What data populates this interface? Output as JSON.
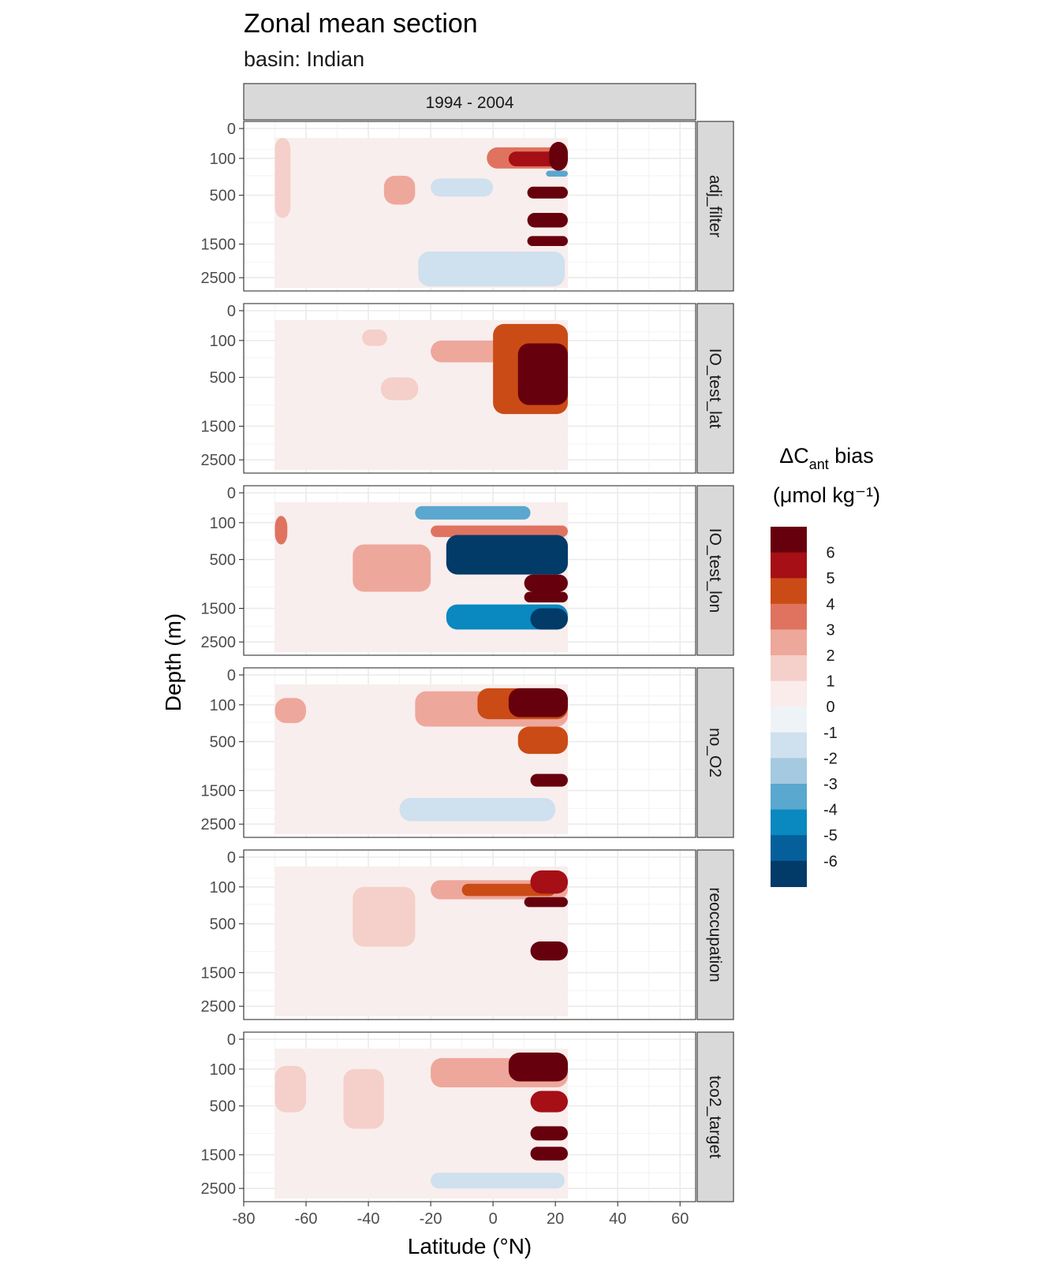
{
  "title": "Zonal mean section",
  "subtitle": "basin: Indian",
  "strip_top": "1994 - 2004",
  "xlabel": "Latitude (°N)",
  "ylabel": "Depth (m)",
  "legend": {
    "title_line1_main": "ΔC",
    "title_line1_sub": "ant",
    "title_line1_rest": " bias",
    "title_line2": "(μmol kg⁻¹)",
    "labels": [
      "6",
      "5",
      "4",
      "3",
      "2",
      "1",
      "0",
      "-1",
      "-2",
      "-3",
      "-4",
      "-5",
      "-6"
    ]
  },
  "colors": {
    "bins": [
      "#67000d",
      "#a50f15",
      "#cb4b16",
      "#e0735f",
      "#eea79b",
      "#f5cfc9",
      "#faeceb",
      "#eef3f8",
      "#cfe0ee",
      "#a5c9e0",
      "#5aa7cf",
      "#0a88c0",
      "#045f9b",
      "#023a68"
    ],
    "panel_bg": "#ffffff",
    "grid": "#ebebeb",
    "strip_bg": "#d9d9d9"
  },
  "chart_data": {
    "type": "heatmap",
    "title": "Zonal mean section",
    "subtitle": "basin: Indian",
    "xlabel": "Latitude (°N)",
    "ylabel": "Depth (m)",
    "xlim": [
      -80,
      65
    ],
    "x_ticks": [
      -80,
      -60,
      -40,
      -20,
      0,
      20,
      40,
      60
    ],
    "y_ticks": [
      0,
      100,
      500,
      1500,
      2500
    ],
    "y_reversed": true,
    "y_scale": "sqrt",
    "data_extent_lat": [
      -70,
      24
    ],
    "legend_breaks": [
      -6,
      -5,
      -4,
      -3,
      -2,
      -1,
      0,
      1,
      2,
      3,
      4,
      5,
      6
    ],
    "panels": [
      {
        "name": "adj_filter",
        "features": [
          {
            "lat": [
              -2,
              24
            ],
            "depth": [
              40,
              180
            ],
            "value": 3.5
          },
          {
            "lat": [
              5,
              24
            ],
            "depth": [
              60,
              160
            ],
            "value": 5.5
          },
          {
            "lat": [
              18,
              24
            ],
            "depth": [
              20,
              200
            ],
            "value": 7
          },
          {
            "lat": [
              17,
              24
            ],
            "depth": [
              200,
              260
            ],
            "value": -3.5
          },
          {
            "lat": [
              11,
              24
            ],
            "depth": [
              380,
              550
            ],
            "value": 6
          },
          {
            "lat": [
              11,
              24
            ],
            "depth": [
              800,
              1100
            ],
            "value": 6.5
          },
          {
            "lat": [
              11,
              24
            ],
            "depth": [
              1300,
              1550
            ],
            "value": 6
          },
          {
            "lat": [
              -20,
              0
            ],
            "depth": [
              280,
              520
            ],
            "value": -1.5
          },
          {
            "lat": [
              -24,
              23
            ],
            "depth": [
              1700,
              2800
            ],
            "value": -1.5
          },
          {
            "lat": [
              -70,
              -65
            ],
            "depth": [
              10,
              900
            ],
            "value": 1.5
          },
          {
            "lat": [
              -35,
              -25
            ],
            "depth": [
              250,
              650
            ],
            "value": 2.5
          }
        ]
      },
      {
        "name": "IO_test_lat",
        "features": [
          {
            "lat": [
              -20,
              24
            ],
            "depth": [
              100,
              300
            ],
            "value": 3
          },
          {
            "lat": [
              0,
              24
            ],
            "depth": [
              20,
              1200
            ],
            "value": 4.5
          },
          {
            "lat": [
              8,
              24
            ],
            "depth": [
              120,
              1000
            ],
            "value": 7
          },
          {
            "lat": [
              -36,
              -24
            ],
            "depth": [
              500,
              900
            ],
            "value": 2
          },
          {
            "lat": [
              -42,
              -34
            ],
            "depth": [
              40,
              140
            ],
            "value": 2
          }
        ]
      },
      {
        "name": "IO_test_lon",
        "features": [
          {
            "lat": [
              -25,
              12
            ],
            "depth": [
              20,
              80
            ],
            "value": -3.5
          },
          {
            "lat": [
              -20,
              24
            ],
            "depth": [
              120,
              220
            ],
            "value": 4
          },
          {
            "lat": [
              -15,
              24
            ],
            "depth": [
              200,
              750
            ],
            "value": -6.5
          },
          {
            "lat": [
              10,
              24
            ],
            "depth": [
              750,
              1100
            ],
            "value": 6
          },
          {
            "lat": [
              10,
              24
            ],
            "depth": [
              1100,
              1350
            ],
            "value": 6.5
          },
          {
            "lat": [
              -15,
              24
            ],
            "depth": [
              1400,
              2100
            ],
            "value": -4.5
          },
          {
            "lat": [
              12,
              24
            ],
            "depth": [
              1500,
              2100
            ],
            "value": -6
          },
          {
            "lat": [
              -70,
              -66
            ],
            "depth": [
              60,
              300
            ],
            "value": 4
          },
          {
            "lat": [
              -45,
              -20
            ],
            "depth": [
              300,
              1100
            ],
            "value": 2.5
          }
        ]
      },
      {
        "name": "no_O2",
        "features": [
          {
            "lat": [
              -25,
              24
            ],
            "depth": [
              30,
              300
            ],
            "value": 3
          },
          {
            "lat": [
              -5,
              24
            ],
            "depth": [
              20,
              220
            ],
            "value": 5
          },
          {
            "lat": [
              5,
              24
            ],
            "depth": [
              20,
              200
            ],
            "value": 7
          },
          {
            "lat": [
              8,
              24
            ],
            "depth": [
              300,
              700
            ],
            "value": 5
          },
          {
            "lat": [
              12,
              24
            ],
            "depth": [
              1100,
              1400
            ],
            "value": 6
          },
          {
            "lat": [
              -30,
              20
            ],
            "depth": [
              1700,
              2400
            ],
            "value": -1.5
          },
          {
            "lat": [
              -70,
              -60
            ],
            "depth": [
              60,
              260
            ],
            "value": 2.5
          }
        ]
      },
      {
        "name": "reoccupation",
        "features": [
          {
            "lat": [
              -20,
              24
            ],
            "depth": [
              60,
              200
            ],
            "value": 3
          },
          {
            "lat": [
              -10,
              20
            ],
            "depth": [
              80,
              170
            ],
            "value": 4.5
          },
          {
            "lat": [
              12,
              24
            ],
            "depth": [
              20,
              150
            ],
            "value": 5.5
          },
          {
            "lat": [
              10,
              24
            ],
            "depth": [
              180,
              280
            ],
            "value": 7
          },
          {
            "lat": [
              12,
              24
            ],
            "depth": [
              800,
              1200
            ],
            "value": 6
          },
          {
            "lat": [
              -45,
              -25
            ],
            "depth": [
              100,
              900
            ],
            "value": 2
          }
        ]
      },
      {
        "name": "tco2_target",
        "features": [
          {
            "lat": [
              -20,
              24
            ],
            "depth": [
              40,
              260
            ],
            "value": 3
          },
          {
            "lat": [
              5,
              24
            ],
            "depth": [
              20,
              200
            ],
            "value": 7
          },
          {
            "lat": [
              12,
              24
            ],
            "depth": [
              300,
              600
            ],
            "value": 5.5
          },
          {
            "lat": [
              12,
              24
            ],
            "depth": [
              850,
              1150
            ],
            "value": 6.5
          },
          {
            "lat": [
              12,
              24
            ],
            "depth": [
              1300,
              1650
            ],
            "value": 6.5
          },
          {
            "lat": [
              -20,
              23
            ],
            "depth": [
              2000,
              2500
            ],
            "value": -1.5
          },
          {
            "lat": [
              -70,
              -60
            ],
            "depth": [
              80,
              600
            ],
            "value": 2
          },
          {
            "lat": [
              -48,
              -35
            ],
            "depth": [
              100,
              900
            ],
            "value": 2
          }
        ]
      }
    ]
  }
}
